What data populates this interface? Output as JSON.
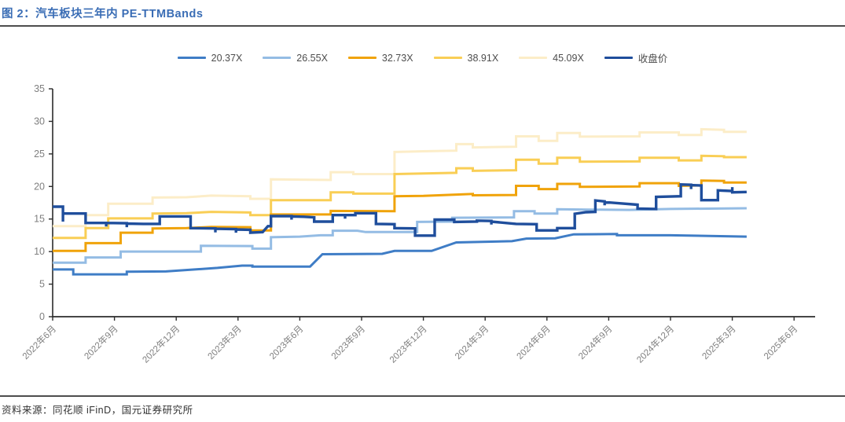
{
  "figure": {
    "title": "图 2：汽车板块三年内 PE-TTMBands",
    "source": "资料来源：同花顺 iFinD，国元证券研究所"
  },
  "legend": [
    {
      "label": "20.37X",
      "color": "#3f7dc6"
    },
    {
      "label": "26.55X",
      "color": "#94bce4"
    },
    {
      "label": "32.73X",
      "color": "#f0a30a"
    },
    {
      "label": "38.91X",
      "color": "#f9ce55"
    },
    {
      "label": "45.09X",
      "color": "#fcedc8"
    },
    {
      "label": "收盘价",
      "color": "#1f4e9c"
    }
  ],
  "chart_data": {
    "type": "line",
    "title": "汽车板块三年内 PE-TTMBands",
    "xlabel": "",
    "ylabel": "",
    "grid": false,
    "legend_position": "top",
    "ylim": [
      0,
      35
    ],
    "y_ticks": [
      0,
      5,
      10,
      15,
      20,
      25,
      30,
      35
    ],
    "x_unit": "months since 2022-06",
    "xlim_months": [
      0,
      37
    ],
    "x_tick_months": [
      0,
      3,
      6,
      9,
      12,
      15,
      18,
      21,
      24,
      27,
      30,
      33,
      36
    ],
    "x_tick_labels": [
      "2022年6月",
      "2022年9月",
      "2022年12月",
      "2023年3月",
      "2023年6月",
      "2023年9月",
      "2023年12月",
      "2024年3月",
      "2024年6月",
      "2024年9月",
      "2024年12月",
      "2025年3月",
      "2025年6月"
    ],
    "axis_color": "#2b2b2b",
    "tick_label_color": "#7f7f7f",
    "series": [
      {
        "name": "45.09X",
        "color": "#fcedc8",
        "width": 3,
        "points": [
          [
            0,
            13.9
          ],
          [
            1.6,
            13.9
          ],
          [
            1.6,
            15.6
          ],
          [
            2.7,
            15.6
          ],
          [
            2.7,
            17.35
          ],
          [
            4.85,
            17.35
          ],
          [
            4.85,
            18.3
          ],
          [
            6.5,
            18.35
          ],
          [
            7.7,
            18.6
          ],
          [
            9.6,
            18.5
          ],
          [
            9.6,
            18.1
          ],
          [
            10.6,
            18.1
          ],
          [
            10.6,
            21.1
          ],
          [
            13.5,
            21.0
          ],
          [
            13.5,
            22.2
          ],
          [
            14.6,
            22.2
          ],
          [
            14.6,
            21.9
          ],
          [
            16.6,
            21.9
          ],
          [
            16.6,
            25.3
          ],
          [
            18,
            25.4
          ],
          [
            19.6,
            25.5
          ],
          [
            19.6,
            26.5
          ],
          [
            20.4,
            26.5
          ],
          [
            20.4,
            26.0
          ],
          [
            22.5,
            26.1
          ],
          [
            22.5,
            27.7
          ],
          [
            23.6,
            27.7
          ],
          [
            23.6,
            27.0
          ],
          [
            24.5,
            27.0
          ],
          [
            24.5,
            28.2
          ],
          [
            25.6,
            28.2
          ],
          [
            25.6,
            27.65
          ],
          [
            28.5,
            27.7
          ],
          [
            28.5,
            28.3
          ],
          [
            30.4,
            28.3
          ],
          [
            30.4,
            27.9
          ],
          [
            31.5,
            27.9
          ],
          [
            31.5,
            28.8
          ],
          [
            32.6,
            28.7
          ],
          [
            32.6,
            28.4
          ],
          [
            33.7,
            28.4
          ]
        ]
      },
      {
        "name": "38.91X",
        "color": "#f9ce55",
        "width": 3,
        "points": [
          [
            0,
            12.1
          ],
          [
            1.6,
            12.1
          ],
          [
            1.6,
            13.6
          ],
          [
            2.7,
            13.6
          ],
          [
            2.7,
            15.1
          ],
          [
            4.85,
            15.1
          ],
          [
            4.85,
            15.85
          ],
          [
            6.5,
            15.9
          ],
          [
            7.7,
            16.1
          ],
          [
            9.6,
            16.0
          ],
          [
            9.6,
            15.6
          ],
          [
            10.6,
            15.6
          ],
          [
            10.6,
            17.9
          ],
          [
            13.5,
            17.9
          ],
          [
            13.5,
            19.1
          ],
          [
            14.6,
            19.1
          ],
          [
            14.6,
            18.9
          ],
          [
            16.6,
            18.9
          ],
          [
            16.6,
            21.9
          ],
          [
            18,
            22.0
          ],
          [
            19.6,
            22.1
          ],
          [
            19.6,
            22.8
          ],
          [
            20.4,
            22.8
          ],
          [
            20.4,
            22.4
          ],
          [
            22.5,
            22.5
          ],
          [
            22.5,
            24.1
          ],
          [
            23.6,
            24.1
          ],
          [
            23.6,
            23.5
          ],
          [
            24.5,
            23.5
          ],
          [
            24.5,
            24.4
          ],
          [
            25.6,
            24.4
          ],
          [
            25.6,
            23.8
          ],
          [
            28.5,
            23.85
          ],
          [
            28.5,
            24.4
          ],
          [
            30.4,
            24.4
          ],
          [
            30.4,
            24.0
          ],
          [
            31.5,
            24.0
          ],
          [
            31.5,
            24.7
          ],
          [
            32.6,
            24.65
          ],
          [
            32.6,
            24.5
          ],
          [
            33.7,
            24.5
          ]
        ]
      },
      {
        "name": "32.73X",
        "color": "#f0a30a",
        "width": 3,
        "points": [
          [
            0,
            10.1
          ],
          [
            1.6,
            10.1
          ],
          [
            1.6,
            11.3
          ],
          [
            3.3,
            11.3
          ],
          [
            3.3,
            12.9
          ],
          [
            4.85,
            12.9
          ],
          [
            4.85,
            13.55
          ],
          [
            6.5,
            13.6
          ],
          [
            7.7,
            13.8
          ],
          [
            9.6,
            13.75
          ],
          [
            9.6,
            13.25
          ],
          [
            10.6,
            13.25
          ],
          [
            10.6,
            15.7
          ],
          [
            13.5,
            15.7
          ],
          [
            13.5,
            16.25
          ],
          [
            16.6,
            16.2
          ],
          [
            16.6,
            18.5
          ],
          [
            18,
            18.55
          ],
          [
            19.6,
            18.75
          ],
          [
            20.4,
            18.85
          ],
          [
            20.4,
            18.65
          ],
          [
            22.5,
            18.7
          ],
          [
            22.5,
            20.1
          ],
          [
            23.6,
            20.1
          ],
          [
            23.6,
            19.6
          ],
          [
            24.5,
            19.6
          ],
          [
            24.5,
            20.4
          ],
          [
            25.6,
            20.4
          ],
          [
            25.6,
            19.95
          ],
          [
            28.5,
            20.0
          ],
          [
            28.5,
            20.5
          ],
          [
            30.4,
            20.5
          ],
          [
            30.4,
            20.1
          ],
          [
            31.5,
            20.15
          ],
          [
            31.5,
            20.9
          ],
          [
            32.6,
            20.85
          ],
          [
            32.6,
            20.6
          ],
          [
            33.7,
            20.6
          ]
        ]
      },
      {
        "name": "26.55X",
        "color": "#94bce4",
        "width": 3,
        "points": [
          [
            0,
            8.3
          ],
          [
            1.6,
            8.3
          ],
          [
            1.6,
            9.1
          ],
          [
            3.3,
            9.1
          ],
          [
            3.3,
            10.0
          ],
          [
            7.2,
            10.0
          ],
          [
            7.2,
            10.9
          ],
          [
            9.7,
            10.85
          ],
          [
            9.7,
            10.45
          ],
          [
            10.6,
            10.45
          ],
          [
            10.6,
            12.2
          ],
          [
            12,
            12.3
          ],
          [
            13,
            12.5
          ],
          [
            13.6,
            12.5
          ],
          [
            13.6,
            13.2
          ],
          [
            14.8,
            13.2
          ],
          [
            15.2,
            13.0
          ],
          [
            17.7,
            13.0
          ],
          [
            17.7,
            14.55
          ],
          [
            19.4,
            14.6
          ],
          [
            19.4,
            15.2
          ],
          [
            22.4,
            15.25
          ],
          [
            22.4,
            16.2
          ],
          [
            23.4,
            16.2
          ],
          [
            23.4,
            15.85
          ],
          [
            24.5,
            15.85
          ],
          [
            24.5,
            16.5
          ],
          [
            26,
            16.45
          ],
          [
            28,
            16.4
          ],
          [
            30,
            16.55
          ],
          [
            33.7,
            16.65
          ]
        ]
      },
      {
        "name": "20.37X",
        "color": "#3f7dc6",
        "width": 3,
        "points": [
          [
            0,
            7.25
          ],
          [
            1,
            7.25
          ],
          [
            1,
            6.5
          ],
          [
            3.6,
            6.5
          ],
          [
            3.6,
            6.9
          ],
          [
            5.5,
            6.95
          ],
          [
            8,
            7.5
          ],
          [
            9.2,
            7.85
          ],
          [
            9.7,
            7.85
          ],
          [
            9.7,
            7.7
          ],
          [
            12.5,
            7.7
          ],
          [
            13.1,
            9.6
          ],
          [
            16,
            9.65
          ],
          [
            16.6,
            10.1
          ],
          [
            18.4,
            10.1
          ],
          [
            19.6,
            11.4
          ],
          [
            22.3,
            11.6
          ],
          [
            23,
            12.0
          ],
          [
            24.4,
            12.05
          ],
          [
            25.3,
            12.65
          ],
          [
            27.4,
            12.7
          ],
          [
            27.4,
            12.5
          ],
          [
            30,
            12.5
          ],
          [
            33.7,
            12.3
          ]
        ]
      },
      {
        "name": "收盘价",
        "color": "#1f4e9c",
        "width": 3.4,
        "points": [
          [
            0,
            16.9
          ],
          [
            0.5,
            16.9
          ],
          [
            0.5,
            14.6
          ],
          [
            0.5,
            15.85
          ],
          [
            1.6,
            15.85
          ],
          [
            1.6,
            14.4
          ],
          [
            2.6,
            14.4
          ],
          [
            2.6,
            13.85
          ],
          [
            2.6,
            14.4
          ],
          [
            3.6,
            14.35
          ],
          [
            3.6,
            13.75
          ],
          [
            3.6,
            14.3
          ],
          [
            4.4,
            14.25
          ],
          [
            5.2,
            14.25
          ],
          [
            5.2,
            15.4
          ],
          [
            6.7,
            15.4
          ],
          [
            6.7,
            13.6
          ],
          [
            7.9,
            13.55
          ],
          [
            7.9,
            12.95
          ],
          [
            7.9,
            13.5
          ],
          [
            8.9,
            13.45
          ],
          [
            8.9,
            12.9
          ],
          [
            8.9,
            13.4
          ],
          [
            9.6,
            13.35
          ],
          [
            9.6,
            12.9
          ],
          [
            10.2,
            13.0
          ],
          [
            10.45,
            13.9
          ],
          [
            10.6,
            13.9
          ],
          [
            10.6,
            15.45
          ],
          [
            11.6,
            15.45
          ],
          [
            11.6,
            14.9
          ],
          [
            11.6,
            15.4
          ],
          [
            12.2,
            15.35
          ],
          [
            12.7,
            15.25
          ],
          [
            12.7,
            14.6
          ],
          [
            13.6,
            14.6
          ],
          [
            13.6,
            15.6
          ],
          [
            14.2,
            15.6
          ],
          [
            14.2,
            15.05
          ],
          [
            14.2,
            15.6
          ],
          [
            14.7,
            15.6
          ],
          [
            14.7,
            15.9
          ],
          [
            15.7,
            15.9
          ],
          [
            15.7,
            14.25
          ],
          [
            16.6,
            14.2
          ],
          [
            16.6,
            13.6
          ],
          [
            17.6,
            13.55
          ],
          [
            17.6,
            12.45
          ],
          [
            18.55,
            12.45
          ],
          [
            18.55,
            14.9
          ],
          [
            19.5,
            14.9
          ],
          [
            19.5,
            14.35
          ],
          [
            19.5,
            14.55
          ],
          [
            20.6,
            14.6
          ],
          [
            20.6,
            14.75
          ],
          [
            21.3,
            14.7
          ],
          [
            21.3,
            14.15
          ],
          [
            21.3,
            14.6
          ],
          [
            22.5,
            14.25
          ],
          [
            23.5,
            14.2
          ],
          [
            23.5,
            13.25
          ],
          [
            24.5,
            13.25
          ],
          [
            24.5,
            13.6
          ],
          [
            25.35,
            13.6
          ],
          [
            25.35,
            15.8
          ],
          [
            25.9,
            16.05
          ],
          [
            26.35,
            16.1
          ],
          [
            26.35,
            17.85
          ],
          [
            26.8,
            17.7
          ],
          [
            26.8,
            17.1
          ],
          [
            26.8,
            17.6
          ],
          [
            27.4,
            17.45
          ],
          [
            28.4,
            17.2
          ],
          [
            28.4,
            16.6
          ],
          [
            29.3,
            16.55
          ],
          [
            29.3,
            18.4
          ],
          [
            30,
            18.45
          ],
          [
            30.5,
            18.5
          ],
          [
            30.5,
            20.3
          ],
          [
            31,
            20.25
          ],
          [
            31,
            19.6
          ],
          [
            31,
            20.2
          ],
          [
            31.5,
            20.15
          ],
          [
            31.5,
            17.9
          ],
          [
            32.3,
            17.9
          ],
          [
            32.3,
            19.4
          ],
          [
            33,
            19.3
          ],
          [
            33,
            19.9
          ],
          [
            33,
            19.1
          ],
          [
            33.7,
            19.15
          ]
        ]
      }
    ]
  }
}
